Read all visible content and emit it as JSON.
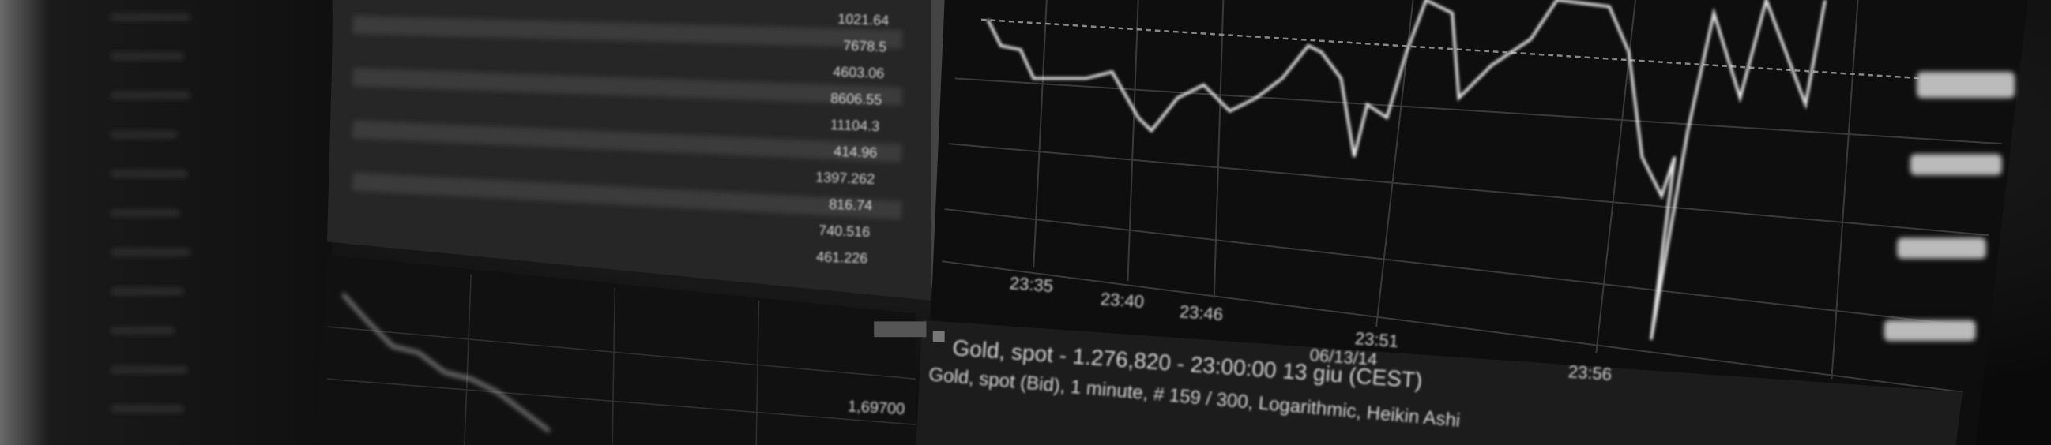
{
  "time_labels": [
    "23:35",
    "23:40",
    "23:46",
    "23:51",
    "06/13/14",
    "23:56"
  ],
  "chart_header": {
    "title": "Gold, spot - 1.276,820 - 23:00:00  13 giu (CEST)",
    "subtitle": "Gold, spot (Bid), 1 minute, # 159 / 300, Logarithmic, Heikin Ashi"
  },
  "table": {
    "values": [
      "1021.64",
      "7678.5",
      "4603.06",
      "8606.55",
      "11104.3",
      "414.96",
      "1397.262",
      "816.74",
      "740.516",
      "461.226"
    ]
  },
  "scale_label": "1,69700"
}
